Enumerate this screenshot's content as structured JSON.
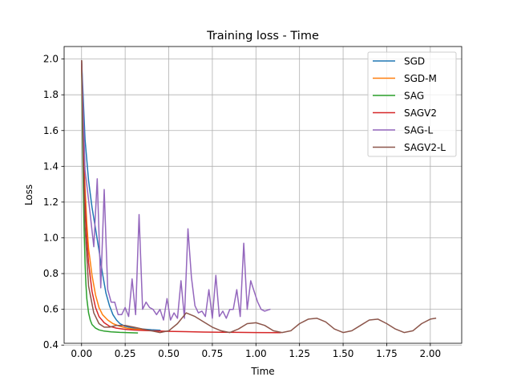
{
  "chart_data": {
    "type": "line",
    "title": "Training loss - Time",
    "xlabel": "Time",
    "ylabel": "Loss",
    "xlim": [
      -0.1,
      2.18
    ],
    "ylim": [
      0.41,
      2.07
    ],
    "xticks": [
      0.0,
      0.25,
      0.5,
      0.75,
      1.0,
      1.25,
      1.5,
      1.75,
      2.0
    ],
    "xtick_labels": [
      "0.00",
      "0.25",
      "0.50",
      "0.75",
      "1.00",
      "1.25",
      "1.50",
      "1.75",
      "2.00"
    ],
    "yticks": [
      0.4,
      0.6,
      0.8,
      1.0,
      1.2,
      1.4,
      1.6,
      1.8,
      2.0
    ],
    "ytick_labels": [
      "0.4",
      "0.6",
      "0.8",
      "1.0",
      "1.2",
      "1.4",
      "1.6",
      "1.8",
      "2.0"
    ],
    "grid": true,
    "legend_position": "top-right",
    "series": [
      {
        "name": "SGD",
        "color": "#1f77b4",
        "x": [
          0.0,
          0.02,
          0.04,
          0.06,
          0.08,
          0.1,
          0.12,
          0.14,
          0.16,
          0.18,
          0.2,
          0.22,
          0.25,
          0.3,
          0.35,
          0.4,
          0.45
        ],
        "y": [
          1.99,
          1.55,
          1.32,
          1.17,
          1.05,
          0.93,
          0.8,
          0.69,
          0.62,
          0.57,
          0.54,
          0.52,
          0.505,
          0.495,
          0.49,
          0.486,
          0.483
        ]
      },
      {
        "name": "SGD-M",
        "color": "#ff7f0e",
        "x": [
          0.0,
          0.01,
          0.02,
          0.03,
          0.04,
          0.06,
          0.08,
          0.1,
          0.12,
          0.15,
          0.18,
          0.22,
          0.26,
          0.3,
          0.36
        ],
        "y": [
          1.99,
          1.55,
          1.28,
          1.08,
          0.94,
          0.79,
          0.68,
          0.61,
          0.57,
          0.54,
          0.52,
          0.505,
          0.495,
          0.49,
          0.487
        ]
      },
      {
        "name": "SAG",
        "color": "#2ca02c",
        "x": [
          0.0,
          0.005,
          0.01,
          0.015,
          0.02,
          0.025,
          0.03,
          0.04,
          0.05,
          0.06,
          0.08,
          0.1,
          0.13,
          0.17,
          0.22,
          0.27,
          0.32
        ],
        "y": [
          1.99,
          1.6,
          1.28,
          1.04,
          0.86,
          0.74,
          0.66,
          0.58,
          0.54,
          0.515,
          0.495,
          0.485,
          0.478,
          0.474,
          0.471,
          0.469,
          0.468
        ]
      },
      {
        "name": "SAGV2",
        "color": "#d62728",
        "x": [
          0.0,
          0.01,
          0.02,
          0.03,
          0.04,
          0.06,
          0.08,
          0.1,
          0.13,
          0.16,
          0.2,
          0.25,
          0.3,
          0.4,
          0.5,
          0.6,
          0.7,
          0.8,
          0.9,
          1.0,
          1.14
        ],
        "y": [
          1.99,
          1.52,
          1.2,
          1.0,
          0.86,
          0.7,
          0.61,
          0.56,
          0.525,
          0.505,
          0.495,
          0.488,
          0.484,
          0.48,
          0.477,
          0.475,
          0.473,
          0.472,
          0.471,
          0.47,
          0.469
        ]
      },
      {
        "name": "SAG-L",
        "color": "#9467bd",
        "x": [
          0.0,
          0.02,
          0.05,
          0.07,
          0.09,
          0.11,
          0.13,
          0.15,
          0.17,
          0.19,
          0.21,
          0.23,
          0.25,
          0.27,
          0.29,
          0.31,
          0.33,
          0.35,
          0.37,
          0.39,
          0.41,
          0.43,
          0.45,
          0.47,
          0.49,
          0.51,
          0.53,
          0.55,
          0.57,
          0.59,
          0.61,
          0.63,
          0.65,
          0.67,
          0.69,
          0.71,
          0.73,
          0.75,
          0.77,
          0.79,
          0.81,
          0.83,
          0.85,
          0.87,
          0.89,
          0.91,
          0.93,
          0.95,
          0.97,
          0.99,
          1.01,
          1.03,
          1.05,
          1.08
        ],
        "y": [
          1.99,
          1.38,
          1.13,
          0.95,
          1.33,
          0.72,
          1.27,
          0.71,
          0.64,
          0.64,
          0.57,
          0.57,
          0.61,
          0.56,
          0.77,
          0.57,
          1.13,
          0.6,
          0.64,
          0.61,
          0.6,
          0.57,
          0.6,
          0.54,
          0.66,
          0.54,
          0.58,
          0.55,
          0.76,
          0.55,
          1.05,
          0.78,
          0.62,
          0.58,
          0.59,
          0.56,
          0.71,
          0.55,
          0.79,
          0.56,
          0.59,
          0.55,
          0.6,
          0.6,
          0.71,
          0.56,
          0.97,
          0.6,
          0.76,
          0.7,
          0.64,
          0.6,
          0.59,
          0.6
        ]
      },
      {
        "name": "SAGV2-L",
        "color": "#8c564b",
        "x": [
          0.0,
          0.01,
          0.02,
          0.04,
          0.07,
          0.1,
          0.13,
          0.16,
          0.2,
          0.25,
          0.3,
          0.35,
          0.4,
          0.45,
          0.5,
          0.55,
          0.6,
          0.65,
          0.7,
          0.75,
          0.8,
          0.85,
          0.9,
          0.95,
          1.0,
          1.05,
          1.1,
          1.15,
          1.2,
          1.25,
          1.3,
          1.35,
          1.4,
          1.45,
          1.5,
          1.55,
          1.6,
          1.65,
          1.7,
          1.75,
          1.8,
          1.85,
          1.9,
          1.95,
          2.0,
          2.03
        ],
        "y": [
          1.99,
          1.42,
          1.06,
          0.73,
          0.58,
          0.52,
          0.5,
          0.5,
          0.51,
          0.51,
          0.5,
          0.49,
          0.48,
          0.47,
          0.48,
          0.52,
          0.58,
          0.56,
          0.53,
          0.5,
          0.48,
          0.47,
          0.49,
          0.52,
          0.525,
          0.51,
          0.48,
          0.47,
          0.48,
          0.52,
          0.545,
          0.55,
          0.53,
          0.49,
          0.47,
          0.48,
          0.51,
          0.54,
          0.545,
          0.52,
          0.49,
          0.47,
          0.48,
          0.52,
          0.545,
          0.55
        ]
      }
    ]
  }
}
